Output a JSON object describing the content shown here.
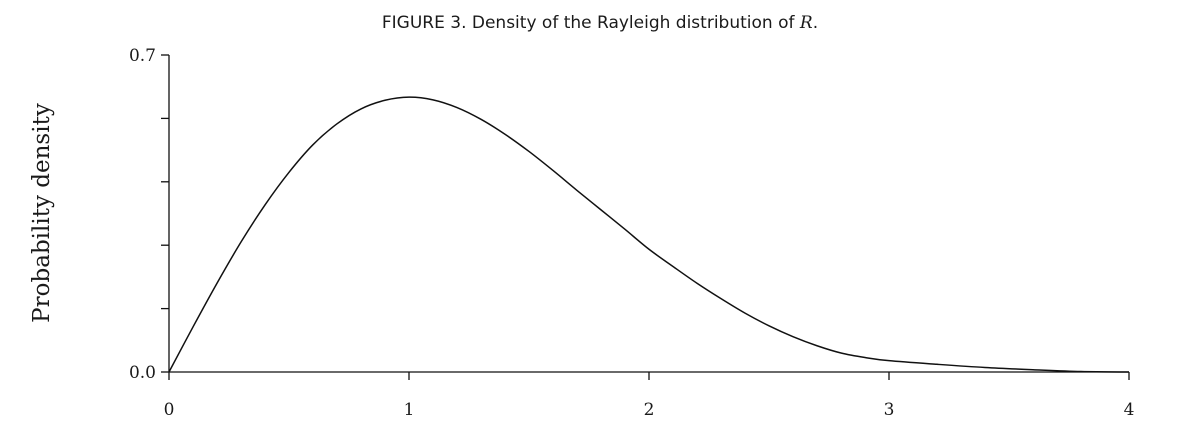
{
  "chart_data": {
    "type": "line",
    "title": "FIGURE 3. Density of the Rayleigh distribution of",
    "title_variable": "R",
    "title_suffix": ".",
    "xlabel": "",
    "ylabel": "Probability density",
    "xlim": [
      0,
      4
    ],
    "ylim": [
      0,
      0.7
    ],
    "x_ticks": [
      "0",
      "1",
      "2",
      "3",
      "4"
    ],
    "y_tick_labels": [
      "0.0",
      "0.7"
    ],
    "y_minor_ticks": [
      0.0,
      0.14,
      0.28,
      0.42,
      0.56,
      0.7
    ],
    "grid": false,
    "series": [
      {
        "x": [
          0,
          0.1,
          0.2,
          0.3,
          0.4,
          0.5,
          0.6,
          0.7,
          0.8,
          0.9,
          1.0,
          1.1,
          1.2,
          1.3,
          1.4,
          1.5,
          1.6,
          1.7,
          1.8,
          1.9,
          2.0,
          2.1,
          2.2,
          2.3,
          2.4,
          2.5,
          2.6,
          2.7,
          2.8,
          2.9,
          3.0,
          3.2,
          3.4,
          3.6,
          3.8,
          4.0
        ],
        "y": [
          0,
          0.0995,
          0.196,
          0.287,
          0.369,
          0.441,
          0.502,
          0.548,
          0.581,
          0.6,
          0.607,
          0.601,
          0.584,
          0.558,
          0.525,
          0.487,
          0.445,
          0.401,
          0.358,
          0.315,
          0.271,
          0.233,
          0.196,
          0.162,
          0.13,
          0.102,
          0.078,
          0.058,
          0.042,
          0.032,
          0.025,
          0.017,
          0.01,
          0.005,
          0.001,
          0.0
        ]
      }
    ]
  }
}
